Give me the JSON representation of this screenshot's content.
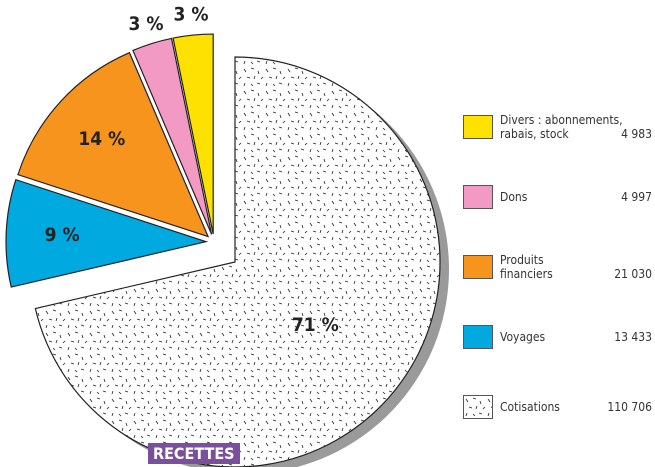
{
  "chart_data": {
    "type": "pie",
    "title": "RECETTES",
    "categories": [
      "Cotisations",
      "Voyages",
      "Produits\nfinanciers",
      "Dons",
      "Divers : abonnements,\nrabais, stock"
    ],
    "values": [
      71,
      9,
      14,
      3,
      3
    ],
    "value_labels": [
      "71 %",
      "9 %",
      "14 %",
      "3 %",
      "3 %"
    ],
    "amounts": [
      110706,
      13433,
      21030,
      4997,
      4983
    ],
    "amount_labels": [
      "110 706",
      "13 433",
      "21 030",
      "4 997",
      "4 983"
    ],
    "colors": [
      "pattern",
      "#00a9e0",
      "#f7941d",
      "#f29ac4",
      "#ffe100"
    ]
  }
}
